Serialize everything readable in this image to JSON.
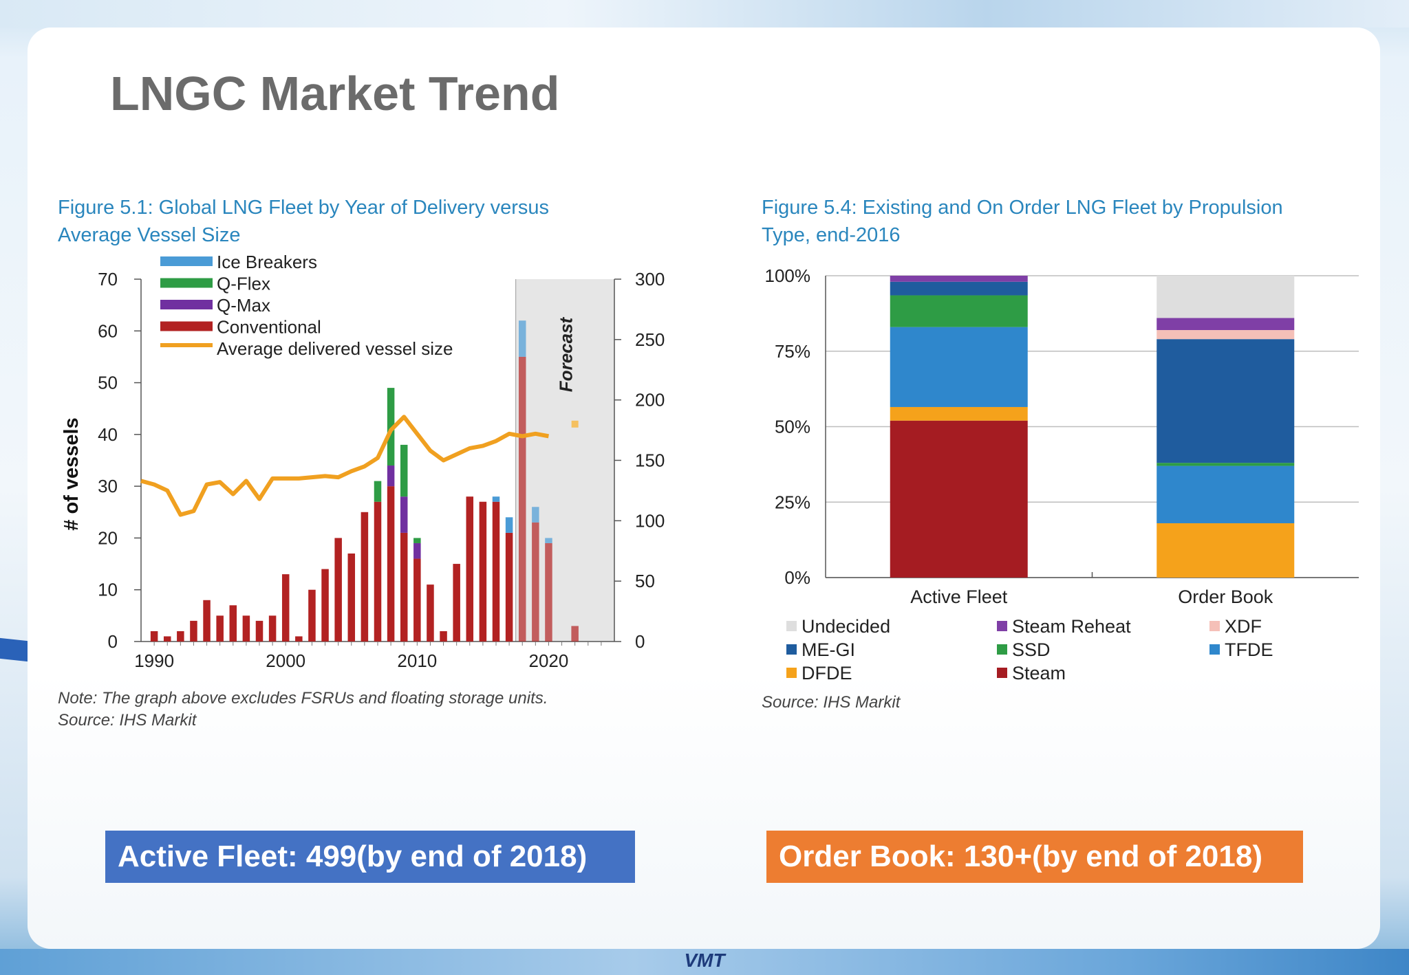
{
  "slide": {
    "title": "LNGC Market Trend",
    "banner_active": "Active Fleet:  499(by end of 2018)",
    "banner_order": "Order Book: 130+(by end of 2018)",
    "logo_text": "VMT"
  },
  "chart_data": [
    {
      "type": "bar",
      "title": "Figure 5.1: Global LNG Fleet by Year of Delivery versus Average Vessel Size",
      "title_lines": [
        "Figure 5.1: Global LNG Fleet by Year of Delivery versus",
        "Average Vessel Size"
      ],
      "ylabel": "# of vessels",
      "ylim": [
        0,
        70
      ],
      "yticks": [
        0,
        10,
        20,
        30,
        40,
        50,
        60,
        70
      ],
      "y2lim": [
        0,
        300
      ],
      "y2ticks": [
        0,
        50,
        100,
        150,
        200,
        250,
        300
      ],
      "xlim": [
        1989,
        2025
      ],
      "xticks": [
        1990,
        2000,
        2010,
        2020
      ],
      "stacked": true,
      "forecast_label": "Forecast",
      "forecast_range": [
        2017.5,
        2025
      ],
      "forecast_from": 2018,
      "note_lines": [
        "Note: The graph above excludes FSRUs and floating storage units.",
        "Source: IHS Markit"
      ],
      "x": [
        1990,
        1991,
        1992,
        1993,
        1994,
        1995,
        1996,
        1997,
        1998,
        1999,
        2000,
        2001,
        2002,
        2003,
        2004,
        2005,
        2006,
        2007,
        2008,
        2009,
        2010,
        2011,
        2012,
        2013,
        2014,
        2015,
        2016,
        2017,
        2018,
        2019,
        2020,
        2021,
        2022
      ],
      "series": [
        {
          "name": "Conventional",
          "color": "#b22222",
          "values": [
            2,
            1,
            2,
            4,
            8,
            5,
            7,
            5,
            4,
            5,
            13,
            1,
            10,
            14,
            20,
            17,
            25,
            27,
            30,
            21,
            16,
            11,
            2,
            15,
            28,
            27,
            27,
            21,
            55,
            23,
            19,
            0,
            3
          ]
        },
        {
          "name": "Q-Max",
          "color": "#7030a0",
          "values": [
            0,
            0,
            0,
            0,
            0,
            0,
            0,
            0,
            0,
            0,
            0,
            0,
            0,
            0,
            0,
            0,
            0,
            0,
            4,
            7,
            3,
            0,
            0,
            0,
            0,
            0,
            0,
            0,
            0,
            0,
            0,
            0,
            0
          ]
        },
        {
          "name": "Q-Flex",
          "color": "#2e9c45",
          "values": [
            0,
            0,
            0,
            0,
            0,
            0,
            0,
            0,
            0,
            0,
            0,
            0,
            0,
            0,
            0,
            0,
            0,
            4,
            15,
            10,
            1,
            0,
            0,
            0,
            0,
            0,
            0,
            0,
            0,
            0,
            0,
            0,
            0
          ]
        },
        {
          "name": "Ice Breakers",
          "color": "#4a9bd6",
          "values": [
            0,
            0,
            0,
            0,
            0,
            0,
            0,
            0,
            0,
            0,
            0,
            0,
            0,
            0,
            0,
            0,
            0,
            0,
            0,
            0,
            0,
            0,
            0,
            0,
            0,
            0,
            1,
            3,
            7,
            3,
            1,
            0,
            0
          ]
        }
      ],
      "line_series": {
        "name": "Average delivered vessel size",
        "color": "#f0a020",
        "axis": "right",
        "x": [
          1989,
          1990,
          1991,
          1992,
          1993,
          1994,
          1995,
          1996,
          1997,
          1998,
          1999,
          2000,
          2001,
          2002,
          2003,
          2004,
          2005,
          2006,
          2007,
          2008,
          2009,
          2010,
          2011,
          2012,
          2013,
          2014,
          2015,
          2016,
          2017,
          2018,
          2019,
          2020
        ],
        "values": [
          133,
          130,
          125,
          105,
          108,
          130,
          132,
          122,
          133,
          118,
          135,
          135,
          135,
          136,
          137,
          136,
          141,
          145,
          152,
          175,
          186,
          172,
          158,
          150,
          155,
          160,
          162,
          166,
          172,
          170,
          172,
          170
        ],
        "forecast_point": {
          "x": 2022,
          "value": 180
        }
      },
      "legend_order": [
        "Ice Breakers",
        "Q-Flex",
        "Q-Max",
        "Conventional",
        "Average delivered vessel size"
      ],
      "legend": "top-left"
    },
    {
      "type": "bar",
      "title": "Figure 5.4: Existing and On Order LNG Fleet by Propulsion Type, end-2016",
      "title_lines": [
        "Figure 5.4: Existing and On Order LNG Fleet by Propulsion",
        "Type, end-2016"
      ],
      "stacked": true,
      "categories": [
        "Active Fleet",
        "Order Book"
      ],
      "ylim": [
        0,
        100
      ],
      "yticks": [
        0,
        25,
        50,
        75,
        100
      ],
      "ytick_labels": [
        "0%",
        "25%",
        "50%",
        "75%",
        "100%"
      ],
      "series": [
        {
          "name": "Steam",
          "color": "#a51c22",
          "values": [
            52,
            0
          ]
        },
        {
          "name": "DFDE",
          "color": "#f5a21b",
          "values": [
            4.5,
            18
          ]
        },
        {
          "name": "TFDE",
          "color": "#2f87cc",
          "values": [
            26.5,
            19
          ]
        },
        {
          "name": "SSD",
          "color": "#2e9c45",
          "values": [
            10.5,
            1
          ]
        },
        {
          "name": "ME-GI",
          "color": "#1f5c9e",
          "values": [
            4.5,
            41
          ]
        },
        {
          "name": "XDF",
          "color": "#f5c0b8",
          "values": [
            0,
            3
          ]
        },
        {
          "name": "Steam Reheat",
          "color": "#7f3fa6",
          "values": [
            2,
            4
          ]
        },
        {
          "name": "Undecided",
          "color": "#dedede",
          "values": [
            0,
            14
          ]
        }
      ],
      "legend_order": [
        "Undecided",
        "Steam Reheat",
        "XDF",
        "ME-GI",
        "SSD",
        "TFDE",
        "DFDE",
        "Steam"
      ],
      "legend": "bottom",
      "note_lines": [
        "Source: IHS Markit"
      ]
    }
  ]
}
